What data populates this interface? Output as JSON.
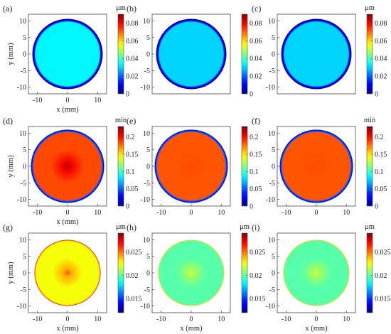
{
  "chart_data": [
    {
      "type": "heatmap",
      "panel_label": "(a)",
      "unit": "μm",
      "xlabel": "x (mm)",
      "ylabel": "y (mm)",
      "xticks": [
        "-10",
        "0",
        "10"
      ],
      "yticks": [
        "10",
        "5",
        "0",
        "-5",
        "-10"
      ],
      "xlim": [
        -13,
        13
      ],
      "ylim": [
        -12,
        12
      ],
      "colorbar_ticks": [
        "0.08",
        "0.06",
        "0.04",
        "0.02",
        "0"
      ],
      "colorbar_range": [
        0,
        0.09
      ],
      "field": {
        "center_value": 0.033,
        "interior_value": 0.033,
        "edge_value": 0.008,
        "ring_radius": 11.1,
        "disk_radius": 11.7
      }
    },
    {
      "type": "heatmap",
      "panel_label": "(b)",
      "unit": "",
      "xlabel": "",
      "ylabel": "",
      "xticks": [],
      "yticks": [
        "10",
        "5",
        "0",
        "-5",
        "-10"
      ],
      "xlim": [
        -13,
        13
      ],
      "ylim": [
        -12,
        12
      ],
      "colorbar_ticks": [
        "0.08",
        "0.06",
        "0.04",
        "0.02",
        "0"
      ],
      "colorbar_range": [
        0,
        0.09
      ],
      "field": {
        "center_value": 0.03,
        "interior_value": 0.03,
        "edge_value": 0.008,
        "ring_radius": 11.1,
        "disk_radius": 11.7
      }
    },
    {
      "type": "heatmap",
      "panel_label": "(c)",
      "unit": "μm",
      "xlabel": "",
      "ylabel": "",
      "xticks": [],
      "yticks": [
        "10",
        "5",
        "0",
        "-5",
        "-10"
      ],
      "xlim": [
        -13,
        13
      ],
      "ylim": [
        -12,
        12
      ],
      "colorbar_ticks": [
        "0.08",
        "0.06",
        "0.04",
        "0.02",
        "0"
      ],
      "colorbar_range": [
        0,
        0.09
      ],
      "field": {
        "center_value": 0.03,
        "interior_value": 0.03,
        "edge_value": 0.008,
        "ring_radius": 11.1,
        "disk_radius": 11.7
      }
    },
    {
      "type": "heatmap",
      "panel_label": "(d)",
      "unit": "min",
      "xlabel": "x (mm)",
      "ylabel": "y (mm)",
      "xticks": [
        "-10",
        "0",
        "10"
      ],
      "yticks": [
        "10",
        "5",
        "0",
        "-5",
        "-10"
      ],
      "xlim": [
        -13,
        13
      ],
      "ylim": [
        -12,
        12
      ],
      "colorbar_ticks": [
        "0.2",
        "0.15",
        "0.1",
        "0.05",
        "0"
      ],
      "colorbar_range": [
        0,
        0.23
      ],
      "field": {
        "center_value": 0.222,
        "interior_value": 0.185,
        "edge_value": 0.05,
        "ring_radius": 11.7,
        "disk_radius": 12.2
      }
    },
    {
      "type": "heatmap",
      "panel_label": "(e)",
      "unit": "",
      "xlabel": "",
      "ylabel": "",
      "xticks": [
        "-10",
        "0",
        "10"
      ],
      "yticks": [
        "10",
        "5",
        "0",
        "-5",
        "-10"
      ],
      "xlim": [
        -13,
        13
      ],
      "ylim": [
        -12,
        12
      ],
      "colorbar_ticks": [
        "0.2",
        "0.15",
        "0.1",
        "0.05",
        "0"
      ],
      "colorbar_range": [
        0,
        0.23
      ],
      "field": {
        "center_value": 0.185,
        "interior_value": 0.182,
        "edge_value": 0.05,
        "ring_radius": 11.7,
        "disk_radius": 12.2
      }
    },
    {
      "type": "heatmap",
      "panel_label": "(f)",
      "unit": "min",
      "xlabel": "",
      "ylabel": "",
      "xticks": [
        "-10",
        "0",
        "10"
      ],
      "yticks": [
        "10",
        "5",
        "0",
        "-5",
        "-10"
      ],
      "xlim": [
        -13,
        13
      ],
      "ylim": [
        -12,
        12
      ],
      "colorbar_ticks": [
        "0.2",
        "0.15",
        "0.1",
        "0.05",
        "0"
      ],
      "colorbar_range": [
        0,
        0.23
      ],
      "field": {
        "center_value": 0.185,
        "interior_value": 0.182,
        "edge_value": 0.05,
        "ring_radius": 11.7,
        "disk_radius": 12.2
      }
    },
    {
      "type": "heatmap",
      "panel_label": "(g)",
      "unit": "μm",
      "xlabel": "x (mm)",
      "ylabel": "y (mm)",
      "xticks": [
        "-10",
        "0",
        "10"
      ],
      "yticks": [
        "10",
        "5",
        "0",
        "-5",
        "-10"
      ],
      "xlim": [
        -13,
        13
      ],
      "ylim": [
        -12,
        12
      ],
      "colorbar_ticks": [
        "0.025",
        "0.02",
        "0.015"
      ],
      "colorbar_range": [
        0.012,
        0.029
      ],
      "field": {
        "center_value": 0.0255,
        "interior_value": 0.0225,
        "edge_value": 0.027,
        "ring_radius": 11.0,
        "disk_radius": 11.0
      }
    },
    {
      "type": "heatmap",
      "panel_label": "(h)",
      "unit": "μm",
      "xlabel": "x (mm)",
      "ylabel": "",
      "xticks": [
        "-10",
        "0",
        "10"
      ],
      "yticks": [
        "10",
        "5",
        "0",
        "-5",
        "-10"
      ],
      "xlim": [
        -13,
        13
      ],
      "ylim": [
        -12,
        12
      ],
      "colorbar_ticks": [
        "0.025",
        "0.02",
        "0.015"
      ],
      "colorbar_range": [
        0.012,
        0.029
      ],
      "field": {
        "center_value": 0.0222,
        "interior_value": 0.0198,
        "edge_value": 0.0235,
        "ring_radius": 11.0,
        "disk_radius": 11.0
      }
    },
    {
      "type": "heatmap",
      "panel_label": "(i)",
      "unit": "μm",
      "xlabel": "x (mm)",
      "ylabel": "",
      "xticks": [
        "-10",
        "0",
        "10"
      ],
      "yticks": [
        "10",
        "5",
        "0",
        "-5",
        "-10"
      ],
      "xlim": [
        -13,
        13
      ],
      "ylim": [
        -12,
        12
      ],
      "colorbar_ticks": [
        "0.025",
        "0.02",
        "0.015"
      ],
      "colorbar_range": [
        0.012,
        0.029
      ],
      "field": {
        "center_value": 0.0222,
        "interior_value": 0.0198,
        "edge_value": 0.0235,
        "ring_radius": 11.0,
        "disk_radius": 11.0
      }
    }
  ]
}
